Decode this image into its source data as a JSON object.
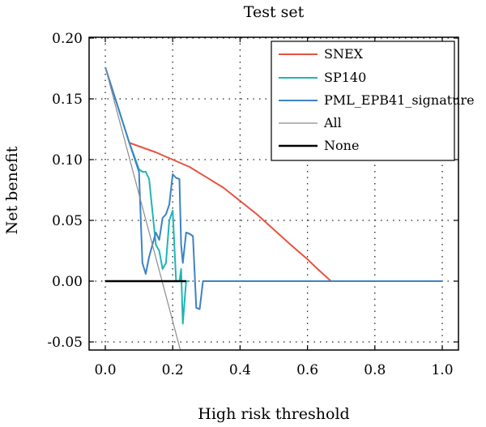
{
  "chart_data": {
    "type": "line",
    "title": "Test set",
    "xlabel": "High risk threshold",
    "ylabel": "Net benefit",
    "xlim": [
      0,
      1.0
    ],
    "ylim": [
      -0.06,
      0.2
    ],
    "xticks": [
      "0.0",
      "0.2",
      "0.4",
      "0.6",
      "0.8",
      "1.0"
    ],
    "yticks": [
      "0.20",
      "0.15",
      "0.10",
      "0.05",
      "0.00",
      "-0.05"
    ],
    "grid": true,
    "legend_position": "top-right",
    "series": [
      {
        "name": "SNEX",
        "color": "#e8533f",
        "x": [
          0.07,
          0.15,
          0.25,
          0.35,
          0.45,
          0.55,
          0.6,
          0.63,
          0.65,
          0.67,
          1.0
        ],
        "y": [
          0.114,
          0.106,
          0.094,
          0.077,
          0.055,
          0.03,
          0.018,
          0.01,
          0.005,
          0.0,
          0.0
        ]
      },
      {
        "name": "SP140",
        "color": "#1fb5b5",
        "x": [
          0.0,
          0.07,
          0.1,
          0.11,
          0.12,
          0.13,
          0.15,
          0.16,
          0.17,
          0.18,
          0.19,
          0.2,
          0.21,
          0.215,
          0.22,
          0.225,
          0.23,
          0.24,
          0.25
        ],
        "y": [
          0.176,
          0.115,
          0.092,
          0.09,
          0.09,
          0.084,
          0.03,
          0.025,
          0.01,
          0.015,
          0.05,
          0.058,
          0.0,
          0.0,
          0.0,
          0.01,
          -0.035,
          0.0,
          0.0
        ]
      },
      {
        "name": "PML_EPB41_signature",
        "color": "#3e82c4",
        "x": [
          0.0,
          0.07,
          0.1,
          0.11,
          0.12,
          0.13,
          0.14,
          0.15,
          0.16,
          0.17,
          0.18,
          0.19,
          0.2,
          0.21,
          0.22,
          0.225,
          0.23,
          0.24,
          0.25,
          0.26,
          0.27,
          0.28,
          0.29,
          1.0
        ],
        "y": [
          0.176,
          0.115,
          0.09,
          0.015,
          0.006,
          0.02,
          0.03,
          0.04,
          0.034,
          0.052,
          0.055,
          0.063,
          0.088,
          0.085,
          0.084,
          0.03,
          0.015,
          0.04,
          0.039,
          0.037,
          -0.022,
          -0.023,
          0.0,
          0.0
        ]
      },
      {
        "name": "All",
        "color": "#8c8c8c",
        "x": [
          0.0,
          0.225
        ],
        "y": [
          0.176,
          -0.059
        ]
      },
      {
        "name": "None",
        "color": "#000000",
        "x": [
          0.0,
          0.24
        ],
        "y": [
          0.0,
          0.0
        ]
      }
    ]
  }
}
